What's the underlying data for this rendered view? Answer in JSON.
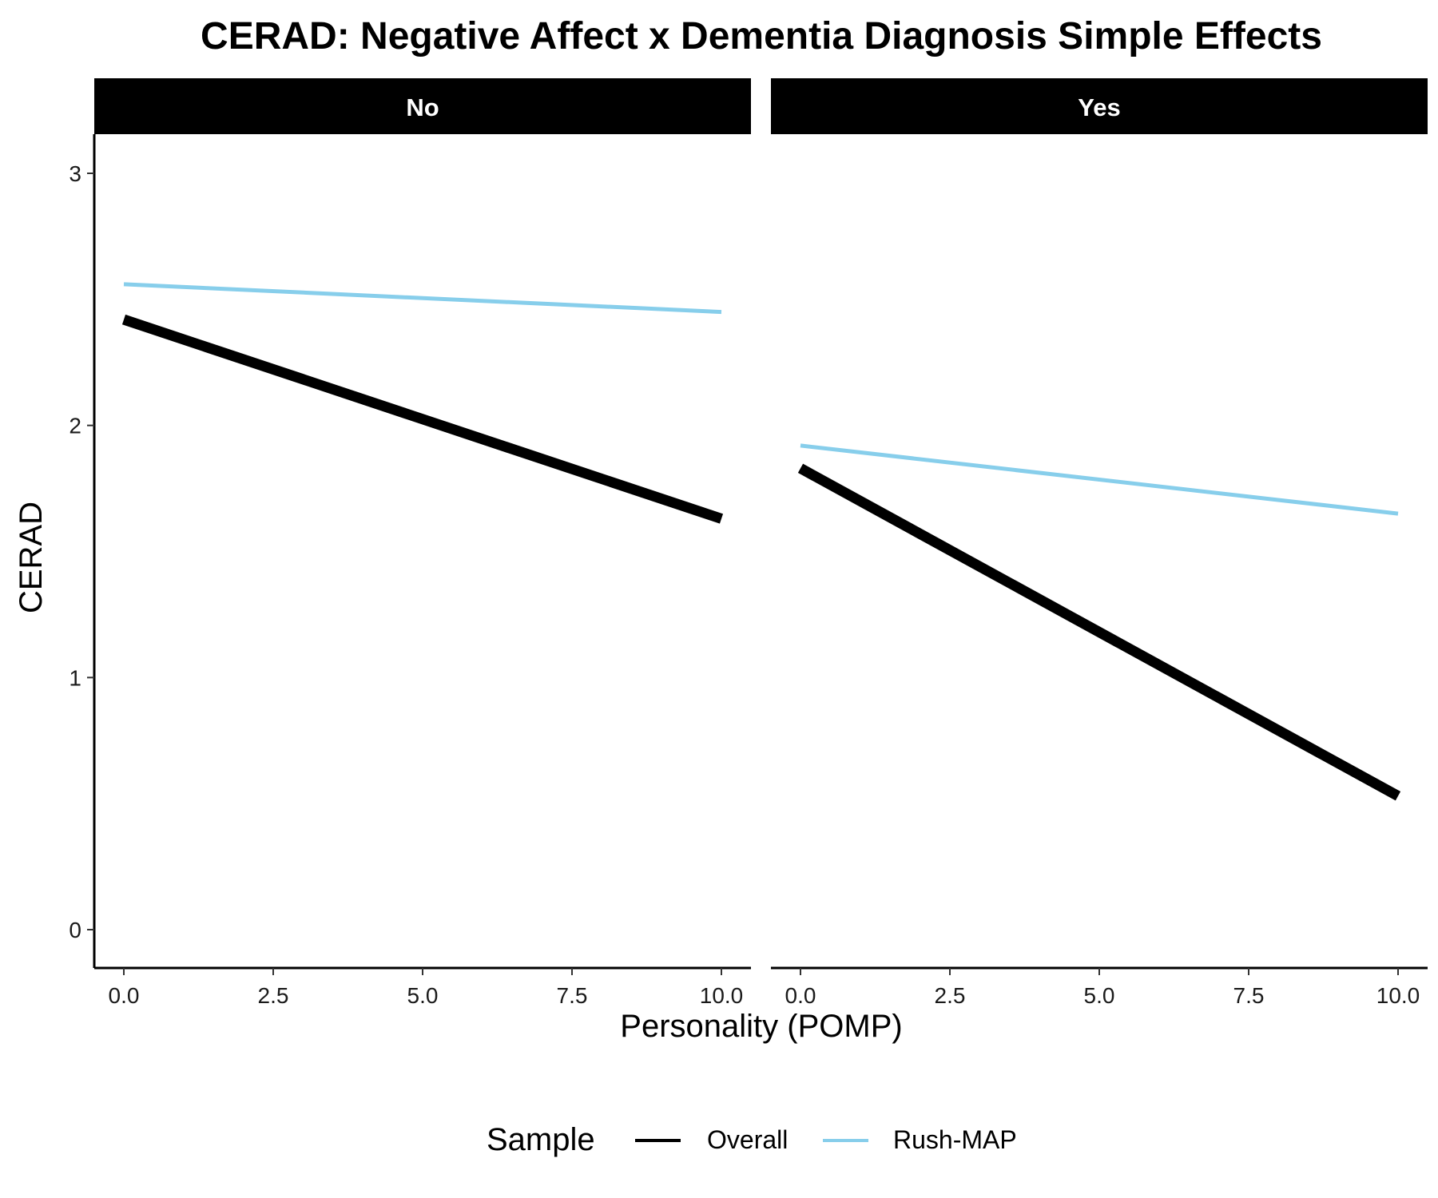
{
  "chart_data": {
    "type": "line",
    "title": "CERAD: Negative Affect x Dementia Diagnosis Simple Effects",
    "xlabel": "Personality (POMP)",
    "ylabel": "CERAD",
    "xlim": [
      0,
      10
    ],
    "ylim": [
      0,
      3
    ],
    "x_ticks": [
      0,
      2.5,
      5,
      7.5,
      10
    ],
    "x_tick_labels": [
      "0.0",
      "2.5",
      "5.0",
      "7.5",
      "10.0"
    ],
    "y_ticks": [
      0,
      1,
      2,
      3
    ],
    "y_tick_labels": [
      "0",
      "1",
      "2",
      "3"
    ],
    "grid": false,
    "legend": {
      "title": "Sample",
      "position": "bottom",
      "entries": [
        "Overall",
        "Rush-MAP"
      ]
    },
    "series_colors": {
      "Overall": "#000000",
      "Rush-MAP": "#87CEEB"
    },
    "panels": [
      {
        "facet": "No",
        "series": [
          {
            "name": "Overall",
            "x": [
              0,
              10
            ],
            "y": [
              2.42,
              1.63
            ]
          },
          {
            "name": "Rush-MAP",
            "x": [
              0,
              10
            ],
            "y": [
              2.56,
              2.45
            ]
          }
        ]
      },
      {
        "facet": "Yes",
        "series": [
          {
            "name": "Overall",
            "x": [
              0,
              10
            ],
            "y": [
              1.83,
              0.53
            ]
          },
          {
            "name": "Rush-MAP",
            "x": [
              0,
              10
            ],
            "y": [
              1.92,
              1.65
            ]
          }
        ]
      }
    ]
  }
}
